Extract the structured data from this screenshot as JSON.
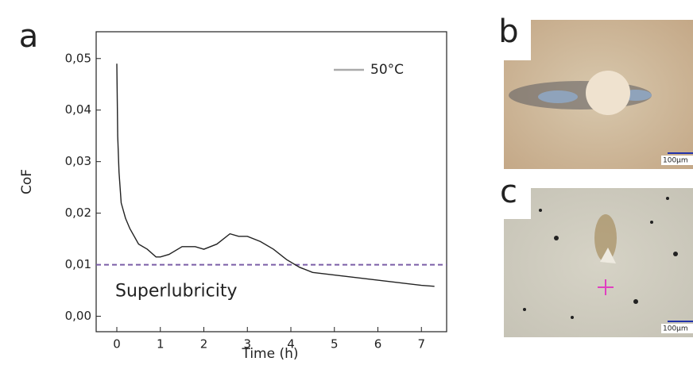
{
  "chart_data": {
    "type": "line",
    "x_label": "Time (h)",
    "y_label": "CoF",
    "x": [
      0,
      0.02,
      0.05,
      0.1,
      0.2,
      0.3,
      0.5,
      0.7,
      0.9,
      1.0,
      1.2,
      1.5,
      1.8,
      2.0,
      2.3,
      2.6,
      2.8,
      3.0,
      3.3,
      3.6,
      3.9,
      4.2,
      4.5,
      5.0,
      5.5,
      6.0,
      6.5,
      7.0,
      7.3
    ],
    "series": [
      {
        "name": "50°C",
        "color": "#222222",
        "values": [
          0.049,
          0.035,
          0.028,
          0.022,
          0.019,
          0.017,
          0.014,
          0.013,
          0.0115,
          0.0115,
          0.012,
          0.0135,
          0.0135,
          0.013,
          0.014,
          0.016,
          0.0155,
          0.0155,
          0.0145,
          0.013,
          0.011,
          0.0095,
          0.0085,
          0.008,
          0.0075,
          0.007,
          0.0065,
          0.006,
          0.0058
        ]
      }
    ],
    "xlim": [
      -0.475,
      7.58
    ],
    "ylim": [
      -0.003,
      0.0552
    ],
    "xticks": [
      0,
      1,
      2,
      3,
      4,
      5,
      6,
      7
    ],
    "yticks": [
      {
        "value": 0,
        "label": "0,00"
      },
      {
        "value": 0.01,
        "label": "0,01"
      },
      {
        "value": 0.02,
        "label": "0,02"
      },
      {
        "value": 0.03,
        "label": "0,03"
      },
      {
        "value": 0.04,
        "label": "0,04"
      },
      {
        "value": 0.05,
        "label": "0,05"
      }
    ],
    "threshold": 0.01,
    "threshold_color": "#7b5ea7",
    "annotation": "Superlubricity",
    "legend_position": "upper right"
  },
  "panel_labels": [
    "a",
    "b",
    "c"
  ],
  "scale_bars": [
    "100µm",
    "100µm"
  ]
}
